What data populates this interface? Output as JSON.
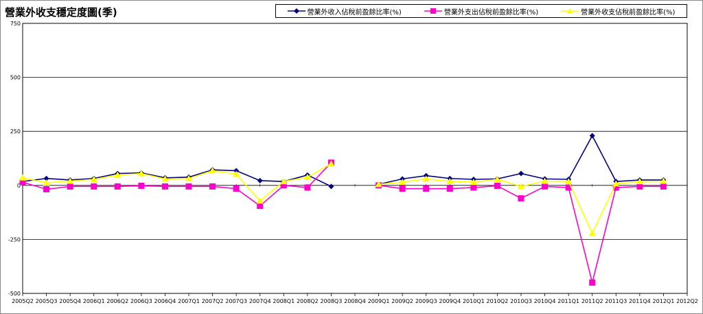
{
  "title": "營業外收支穩定度圖(季)",
  "legend": [
    {
      "label": "營業外收入佔稅前盈餘比率(%)",
      "color": "#000080",
      "marker": "diamond"
    },
    {
      "label": "營業外支出佔稅前盈餘比率(%)",
      "color": "#ff00cc",
      "marker": "square"
    },
    {
      "label": "營業外收支佔稅前盈餘比率(%)",
      "color": "#ffff00",
      "marker": "triangle"
    }
  ],
  "chart_data": {
    "type": "line",
    "title": "營業外收支穩定度圖(季)",
    "xlabel": "",
    "ylabel": "",
    "ylim": [
      -500,
      750
    ],
    "yticks": [
      750,
      500,
      250,
      0,
      -250,
      -500
    ],
    "grid": true,
    "legend_position": "top",
    "categories": [
      "2005Q2",
      "2005Q3",
      "2005Q4",
      "2006Q1",
      "2006Q2",
      "2006Q3",
      "2006Q4",
      "2007Q1",
      "2007Q2",
      "2007Q3",
      "2007Q4",
      "2008Q1",
      "2008Q2",
      "2008Q3",
      "2008Q4",
      "2009Q1",
      "2009Q2",
      "2009Q3",
      "2009Q4",
      "2010Q1",
      "2010Q2",
      "2010Q3",
      "2010Q4",
      "2011Q1",
      "2011Q2",
      "2011Q3",
      "2011Q4",
      "2012Q1",
      "2012Q2"
    ],
    "series": [
      {
        "name": "營業外收入佔稅前盈餘比率(%)",
        "color": "#000080",
        "marker": "diamond",
        "values": [
          18,
          32,
          25,
          32,
          55,
          58,
          35,
          38,
          72,
          68,
          22,
          18,
          48,
          -5,
          null,
          5,
          30,
          45,
          32,
          28,
          30,
          55,
          30,
          28,
          230,
          18,
          25,
          25,
          null
        ]
      },
      {
        "name": "營業外支出佔稅前盈餘比率(%)",
        "color": "#ff00cc",
        "marker": "square",
        "values": [
          15,
          -18,
          -5,
          -5,
          -5,
          -2,
          -5,
          -5,
          -5,
          -15,
          -95,
          0,
          -10,
          105,
          null,
          0,
          -15,
          -15,
          -15,
          -10,
          -2,
          -60,
          -5,
          -10,
          -450,
          -10,
          -5,
          -5,
          null
        ]
      },
      {
        "name": "營業外收支佔稅前盈餘比率(%)",
        "color": "#ffff00",
        "marker": "triangle",
        "values": [
          35,
          12,
          20,
          28,
          48,
          55,
          30,
          32,
          68,
          52,
          -72,
          18,
          38,
          100,
          null,
          5,
          15,
          30,
          18,
          15,
          28,
          -5,
          20,
          18,
          -222,
          8,
          18,
          20,
          null
        ]
      }
    ]
  }
}
